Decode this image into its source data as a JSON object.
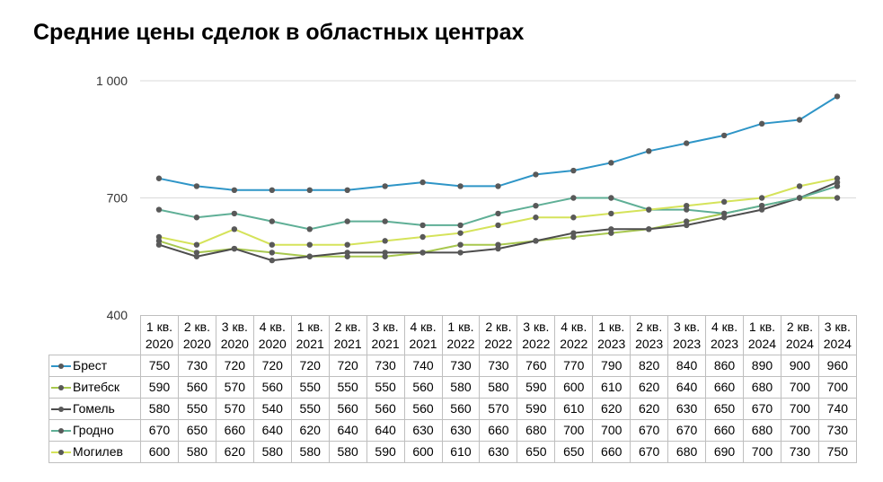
{
  "title": "Средние цены сделок в областных центрах",
  "chart_data": {
    "type": "line",
    "title": "Средние цены сделок в областных центрах",
    "xlabel": "",
    "ylabel": "",
    "ylim": [
      400,
      1000
    ],
    "yticks": [
      "400",
      "700",
      "1 000"
    ],
    "grid": true,
    "legend": "data-table",
    "categories": [
      [
        "1 кв.",
        "2020"
      ],
      [
        "2 кв.",
        "2020"
      ],
      [
        "3 кв.",
        "2020"
      ],
      [
        "4 кв.",
        "2020"
      ],
      [
        "1 кв.",
        "2021"
      ],
      [
        "2 кв.",
        "2021"
      ],
      [
        "3 кв.",
        "2021"
      ],
      [
        "4 кв.",
        "2021"
      ],
      [
        "1 кв.",
        "2022"
      ],
      [
        "2 кв.",
        "2022"
      ],
      [
        "3 кв.",
        "2022"
      ],
      [
        "4 кв.",
        "2022"
      ],
      [
        "1 кв.",
        "2023"
      ],
      [
        "2 кв.",
        "2023"
      ],
      [
        "3 кв.",
        "2023"
      ],
      [
        "4 кв.",
        "2023"
      ],
      [
        "1 кв.",
        "2024"
      ],
      [
        "2 кв.",
        "2024"
      ],
      [
        "3 кв.",
        "2024"
      ]
    ],
    "series": [
      {
        "name": "Брест",
        "color": "#2e95c7",
        "marker": "#595959",
        "values": [
          750,
          730,
          720,
          720,
          720,
          720,
          730,
          740,
          730,
          730,
          760,
          770,
          790,
          820,
          840,
          860,
          890,
          900,
          960
        ]
      },
      {
        "name": "Витебск",
        "color": "#a8c84f",
        "marker": "#595959",
        "values": [
          590,
          560,
          570,
          560,
          550,
          550,
          550,
          560,
          580,
          580,
          590,
          600,
          610,
          620,
          640,
          660,
          680,
          700,
          700
        ]
      },
      {
        "name": "Гомель",
        "color": "#4d4d4d",
        "marker": "#595959",
        "values": [
          580,
          550,
          570,
          540,
          550,
          560,
          560,
          560,
          560,
          570,
          590,
          610,
          620,
          620,
          630,
          650,
          670,
          700,
          740
        ]
      },
      {
        "name": "Гродно",
        "color": "#5faf96",
        "marker": "#595959",
        "values": [
          670,
          650,
          660,
          640,
          620,
          640,
          640,
          630,
          630,
          660,
          680,
          700,
          700,
          670,
          670,
          660,
          680,
          700,
          730
        ]
      },
      {
        "name": "Могилев",
        "color": "#d5e35a",
        "marker": "#595959",
        "values": [
          600,
          580,
          620,
          580,
          580,
          580,
          590,
          600,
          610,
          630,
          650,
          650,
          660,
          670,
          680,
          690,
          700,
          730,
          750
        ]
      }
    ]
  }
}
